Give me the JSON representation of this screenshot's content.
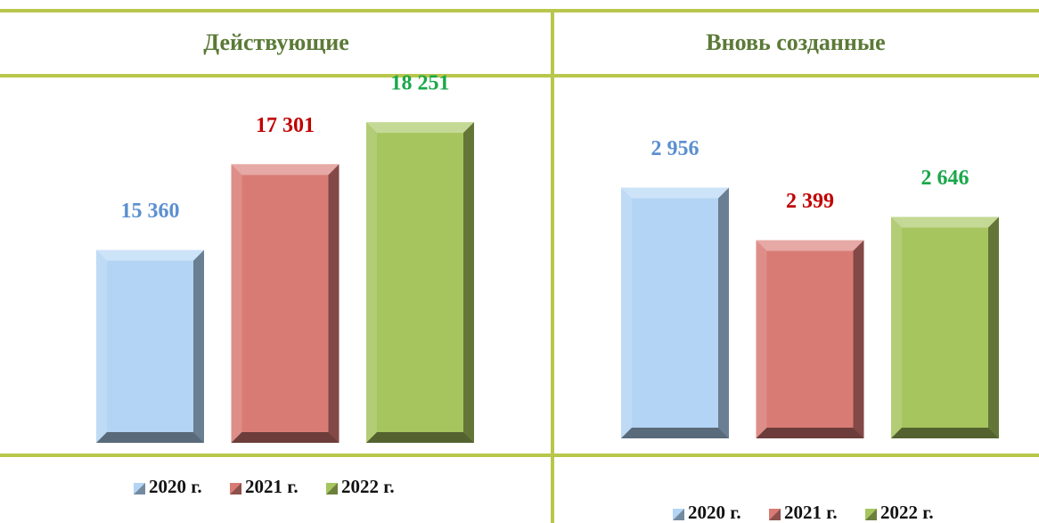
{
  "chart_data": [
    {
      "type": "bar",
      "title": "Действующие",
      "categories": [
        "2020 г.",
        "2021 г.",
        "2022 г."
      ],
      "values": [
        15360,
        17301,
        18251
      ],
      "value_labels": [
        "15 360",
        "17 301",
        "18 251"
      ],
      "colors": [
        "#b3d4f4",
        "#d97b75",
        "#a6c55e"
      ],
      "label_colors": [
        "#5b8fd0",
        "#c00000",
        "#1aa84a"
      ],
      "ylim": [
        11000,
        19000
      ]
    },
    {
      "type": "bar",
      "title": "Вновь созданные",
      "categories": [
        "2020 г.",
        "2021 г.",
        "2022 г."
      ],
      "values": [
        2956,
        2399,
        2646
      ],
      "value_labels": [
        "2 956",
        "2 399",
        "2 646"
      ],
      "colors": [
        "#b3d4f4",
        "#d97b75",
        "#a6c55e"
      ],
      "label_colors": [
        "#5b8fd0",
        "#c00000",
        "#1aa84a"
      ],
      "ylim": [
        300,
        4000
      ]
    }
  ]
}
